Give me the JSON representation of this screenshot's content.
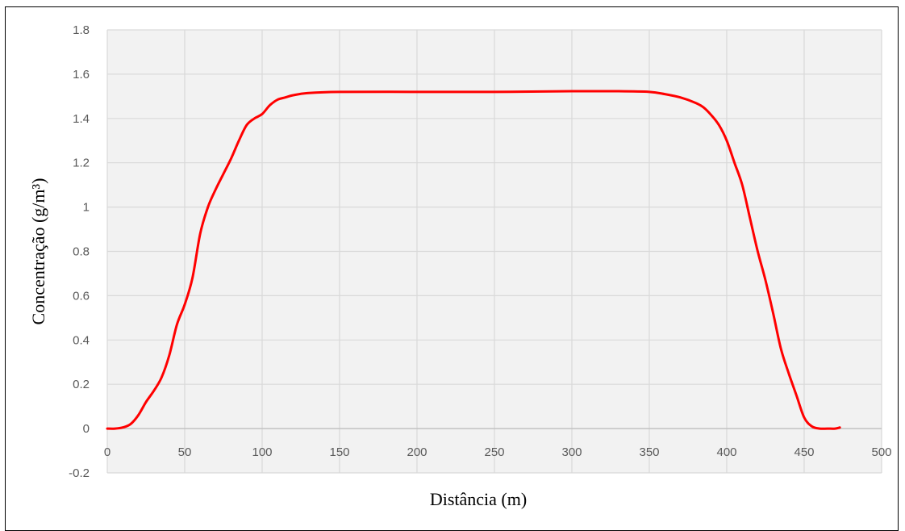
{
  "chart_data": {
    "type": "line",
    "title": "",
    "xlabel": "Distância (m)",
    "ylabel": "Concentração (g/m³)",
    "xlim": [
      0,
      500
    ],
    "ylim": [
      -0.2,
      1.8
    ],
    "x_ticks": [
      "0",
      "50",
      "100",
      "150",
      "200",
      "250",
      "300",
      "350",
      "400",
      "450",
      "500"
    ],
    "y_ticks": [
      "-0.2",
      "0",
      "0.2",
      "0.4",
      "0.6",
      "0.8",
      "1",
      "1.2",
      "1.4",
      "1.6",
      "1.8"
    ],
    "grid": true,
    "legend": "none",
    "series": [
      {
        "color": "#ff0000",
        "x": [
          0,
          5,
          10,
          15,
          20,
          25,
          30,
          35,
          40,
          45,
          50,
          55,
          60,
          65,
          70,
          75,
          80,
          85,
          90,
          95,
          100,
          105,
          110,
          115,
          120,
          130,
          150,
          200,
          250,
          300,
          330,
          350,
          360,
          370,
          380,
          385,
          390,
          395,
          400,
          405,
          410,
          415,
          420,
          425,
          430,
          435,
          440,
          445,
          450,
          455,
          460,
          465,
          470,
          473
        ],
        "y": [
          0,
          0,
          0.005,
          0.02,
          0.06,
          0.12,
          0.17,
          0.23,
          0.33,
          0.47,
          0.56,
          0.68,
          0.88,
          1.0,
          1.08,
          1.15,
          1.22,
          1.3,
          1.37,
          1.4,
          1.42,
          1.46,
          1.485,
          1.495,
          1.505,
          1.515,
          1.52,
          1.52,
          1.52,
          1.523,
          1.523,
          1.52,
          1.51,
          1.495,
          1.47,
          1.45,
          1.415,
          1.37,
          1.3,
          1.2,
          1.1,
          0.95,
          0.8,
          0.67,
          0.52,
          0.36,
          0.25,
          0.15,
          0.05,
          0.01,
          0,
          0,
          0,
          0.005
        ]
      }
    ]
  }
}
